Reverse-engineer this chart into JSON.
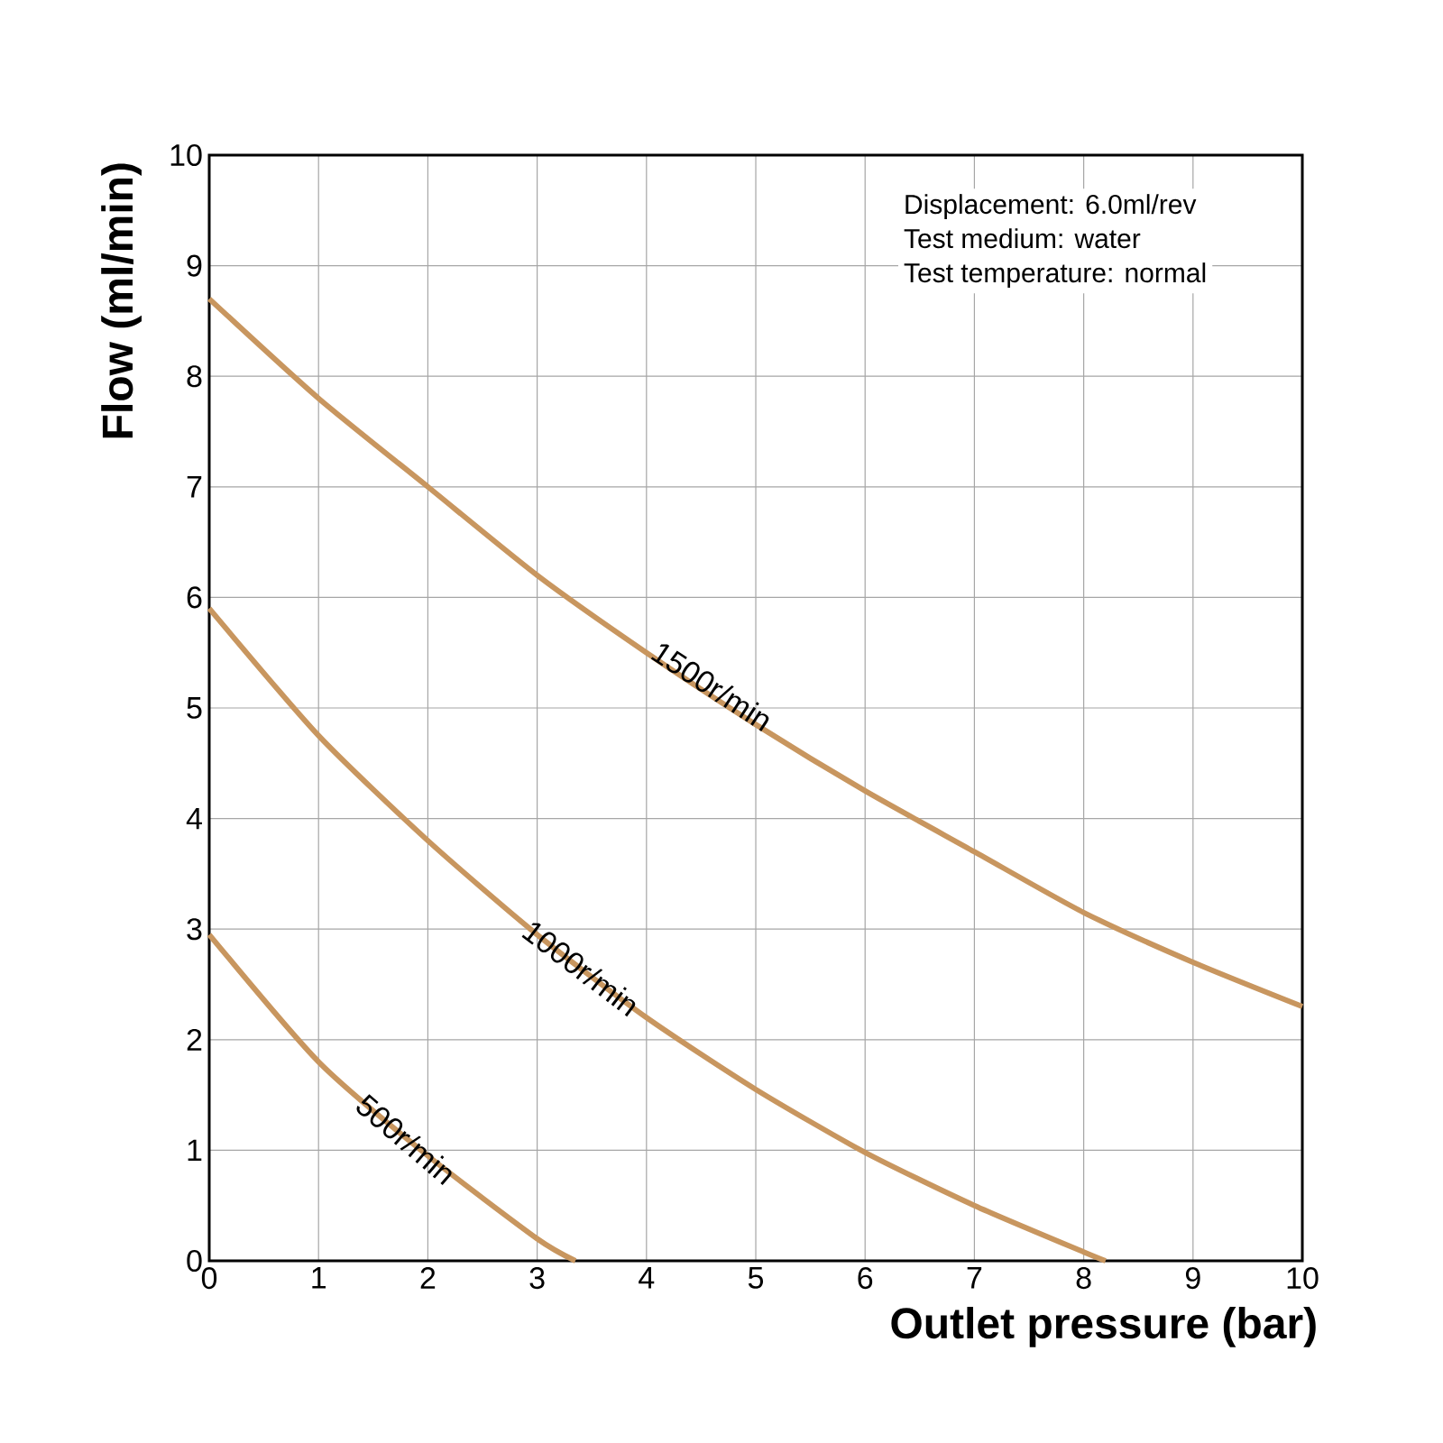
{
  "chart_data": {
    "type": "line",
    "xlabel": "Outlet pressure (bar)",
    "ylabel": "Flow (ml/min)",
    "xlim": [
      0,
      10
    ],
    "ylim": [
      0,
      10
    ],
    "xticks": [
      0,
      1,
      2,
      3,
      4,
      5,
      6,
      7,
      8,
      9,
      10
    ],
    "yticks": [
      0,
      1,
      2,
      3,
      4,
      5,
      6,
      7,
      8,
      9,
      10
    ],
    "grid": true,
    "marker": "none",
    "line_style": "solid",
    "series": [
      {
        "color": "#c8965f",
        "x": [
          0,
          1,
          2,
          3,
          4,
          5,
          6,
          7,
          8,
          9,
          10
        ],
        "values": [
          8.7,
          7.8,
          7.0,
          6.2,
          5.5,
          4.85,
          4.25,
          3.7,
          3.15,
          2.7,
          2.3
        ]
      },
      {
        "color": "#c8965f",
        "x": [
          0,
          1,
          2,
          3,
          4,
          5,
          6,
          7,
          8,
          8.2
        ],
        "values": [
          5.9,
          4.75,
          3.8,
          2.95,
          2.2,
          1.55,
          0.98,
          0.5,
          0.08,
          0
        ]
      },
      {
        "color": "#c8965f",
        "x": [
          0,
          1,
          2,
          3,
          3.35
        ],
        "values": [
          2.95,
          1.8,
          0.95,
          0.2,
          0
        ]
      }
    ],
    "annotations": [
      "Displacement: 6.0ml/rev",
      "Test medium: water",
      "Test temperature: normal",
      {
        "text": "1500r/min",
        "x": 4.6,
        "y": 5.2
      },
      {
        "text": "1000r/min",
        "x": 3.4,
        "y": 2.65
      },
      {
        "text": "500r/min",
        "x": 1.8,
        "y": 1.1
      }
    ]
  }
}
